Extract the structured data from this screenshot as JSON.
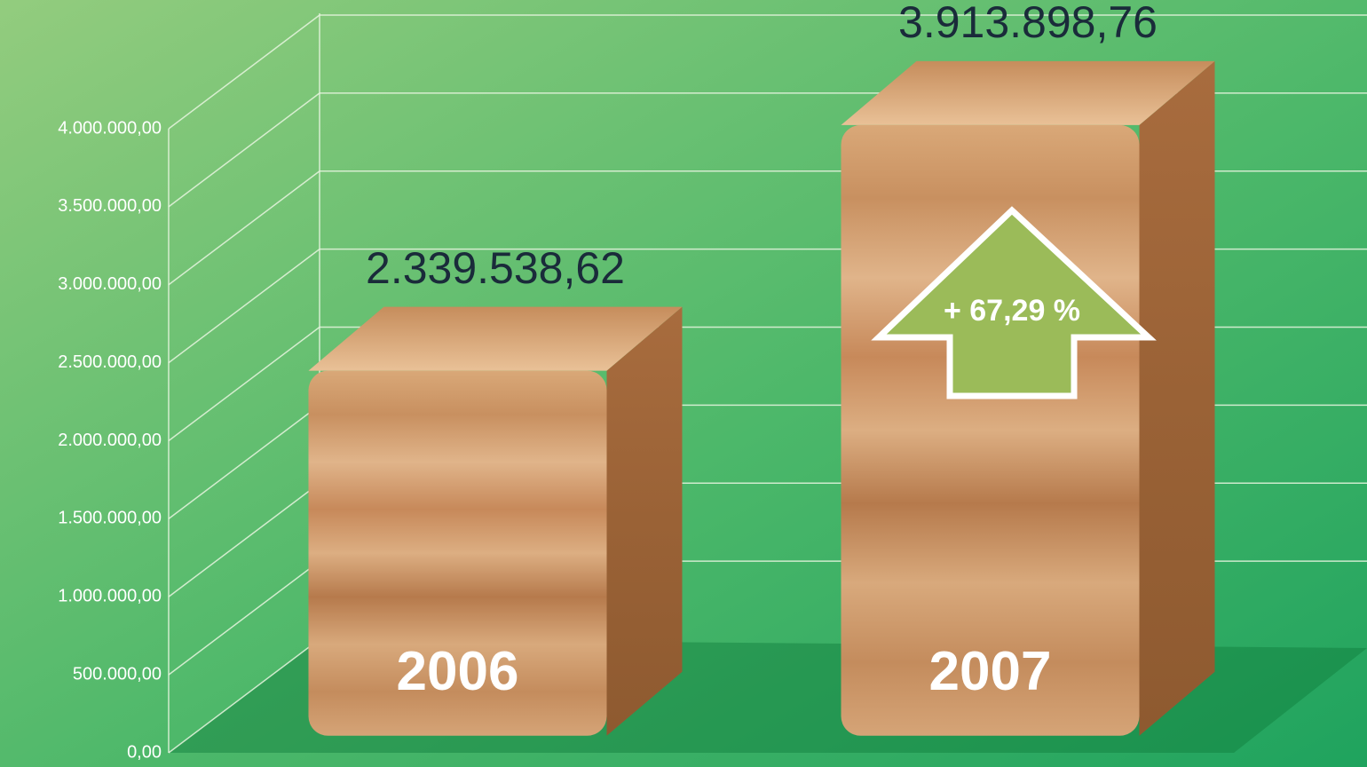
{
  "chart_data": {
    "type": "bar3d",
    "categories": [
      "2006",
      "2007"
    ],
    "values": [
      2339538.62,
      3913898.76
    ],
    "value_labels": [
      "2.339.538,62",
      "3.913.898,76"
    ],
    "annotation": "+ 67,29 %",
    "ylim": [
      0,
      4000000
    ],
    "yticks": [
      {
        "value": 0,
        "label": "0,00"
      },
      {
        "value": 500000,
        "label": "500.000,00"
      },
      {
        "value": 1000000,
        "label": "1.000.000,00"
      },
      {
        "value": 1500000,
        "label": "1.500.000,00"
      },
      {
        "value": 2000000,
        "label": "2.000.000,00"
      },
      {
        "value": 2500000,
        "label": "2.500.000,00"
      },
      {
        "value": 3000000,
        "label": "3.000.000,00"
      },
      {
        "value": 3500000,
        "label": "3.500.000,00"
      },
      {
        "value": 4000000,
        "label": "4.000.000,00"
      }
    ],
    "grid": true
  }
}
